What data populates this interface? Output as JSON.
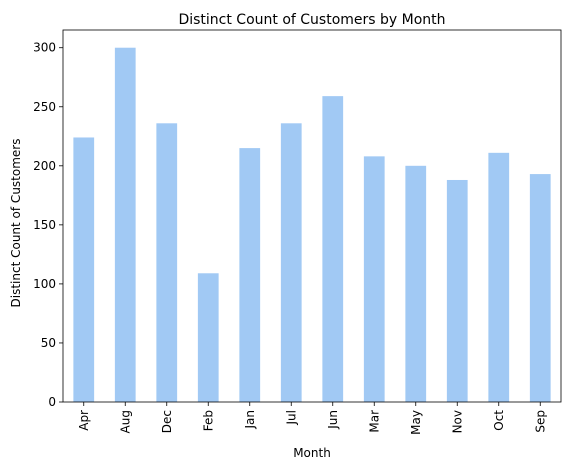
{
  "chart_data": {
    "type": "bar",
    "title": "Distinct Count of Customers by Month",
    "xlabel": "Month",
    "ylabel": "Distinct Count of Customers",
    "categories": [
      "Apr",
      "Aug",
      "Dec",
      "Feb",
      "Jan",
      "Jul",
      "Jun",
      "Mar",
      "May",
      "Nov",
      "Oct",
      "Sep"
    ],
    "values": [
      224,
      300,
      236,
      109,
      215,
      236,
      259,
      208,
      200,
      188,
      211,
      193
    ],
    "ylim": [
      0,
      315
    ],
    "yticks": [
      0,
      50,
      100,
      150,
      200,
      250,
      300
    ],
    "grid": false,
    "legend": "none",
    "bar_color": "#a1c9f4",
    "x_tick_rotation": "vertical"
  }
}
